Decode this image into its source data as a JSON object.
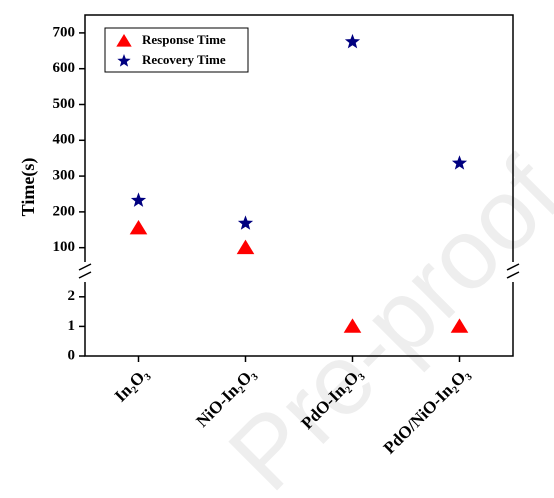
{
  "chart_data": {
    "type": "scatter",
    "watermark": "Pre-proof",
    "y_label": "Time(s)",
    "categories": [
      "In₂O₃",
      "NiO-In₂O₃",
      "PdO-In₂O₃",
      "PdO/NiO-In₂O₃"
    ],
    "series": [
      {
        "name": "Response Time",
        "color": "#ff0000",
        "marker": "triangle",
        "values": [
          155,
          100,
          1,
          1
        ]
      },
      {
        "name": "Recovery Time",
        "color": "#000080",
        "marker": "star",
        "values": [
          232,
          168,
          675,
          336
        ]
      }
    ],
    "panels": [
      {
        "ylim": [
          60,
          750
        ],
        "yticks": [
          100,
          200,
          300,
          400,
          500,
          600,
          700
        ]
      },
      {
        "ylim": [
          0,
          2.5
        ],
        "yticks": [
          0,
          1,
          2
        ]
      }
    ],
    "legend": "top-left"
  }
}
